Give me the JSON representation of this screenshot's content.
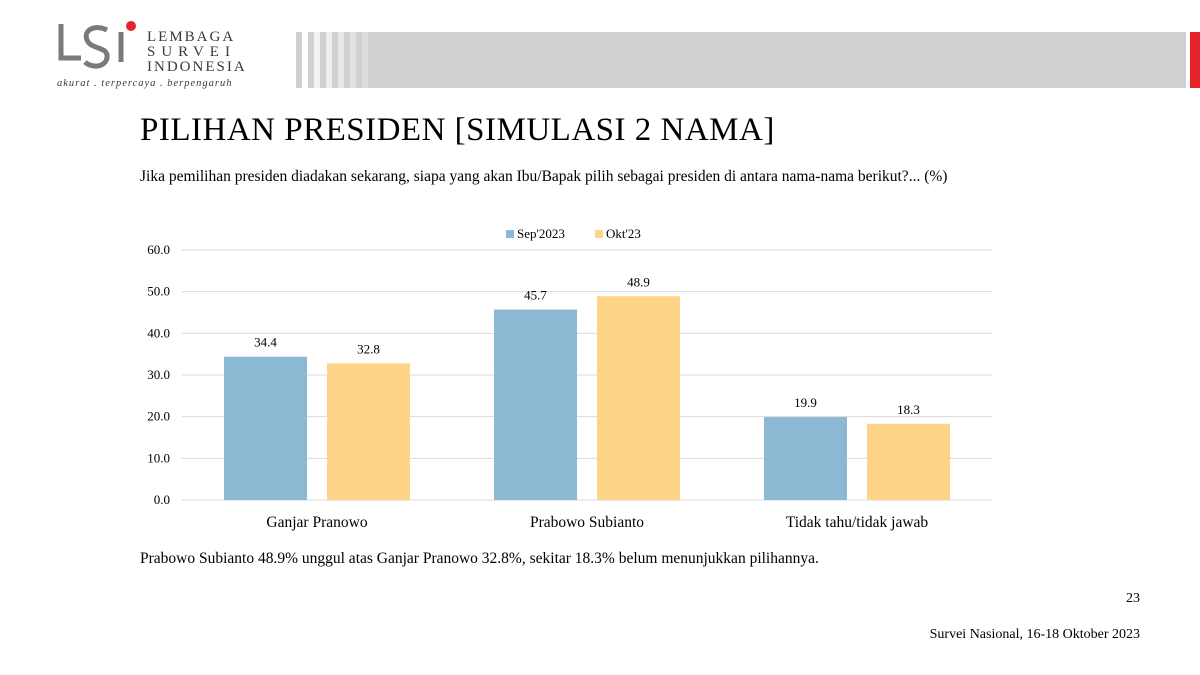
{
  "logo": {
    "line1": "LEMBAGA",
    "line2": "SURVEI",
    "line3": "INDONESIA",
    "tagline": "akurat . terpercaya . berpengaruh",
    "accent_color": "#e8232a"
  },
  "slide": {
    "title": "PILIHAN PRESIDEN [SIMULASI 2 NAMA]",
    "question": "Jika pemilihan presiden diadakan sekarang, siapa yang akan Ibu/Bapak pilih sebagai presiden di antara nama-nama berikut?... (%)",
    "summary": "Prabowo Subianto 48.9% unggul atas Ganjar Pranowo 32.8%, sekitar 18.3% belum menunjukkan pilihannya.",
    "page_number": "23",
    "footer": "Survei Nasional, 16-18 Oktober 2023"
  },
  "chart_data": {
    "type": "bar",
    "categories": [
      "Ganjar Pranowo",
      "Prabowo Subianto",
      "Tidak tahu/tidak jawab"
    ],
    "series": [
      {
        "name": "Sep'2023",
        "values": [
          34.4,
          45.7,
          19.9
        ],
        "color": "#8db8d3"
      },
      {
        "name": "Okt'23",
        "values": [
          32.8,
          48.9,
          18.3
        ],
        "color": "#fdd488"
      }
    ],
    "ylim": [
      0,
      60
    ],
    "yticks": [
      "0.0",
      "10.0",
      "20.0",
      "30.0",
      "40.0",
      "50.0",
      "60.0"
    ],
    "grid": true,
    "legend": "top-center",
    "xlabel": "",
    "ylabel": ""
  }
}
